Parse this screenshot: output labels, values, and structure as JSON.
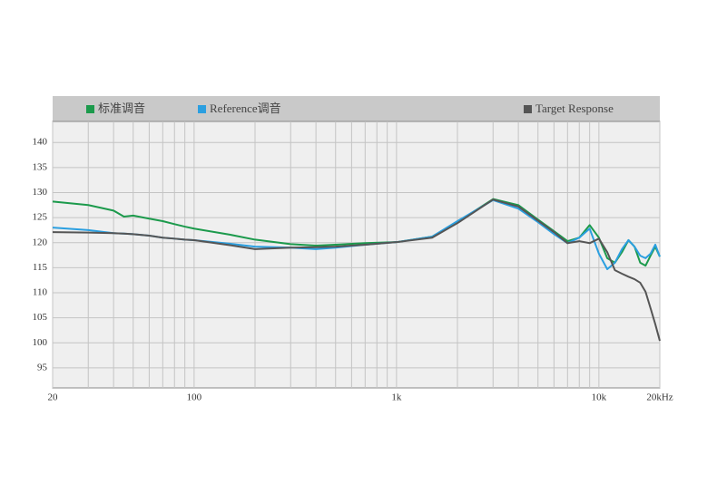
{
  "chart_data": {
    "type": "line",
    "x": [
      20,
      30,
      40,
      45,
      50,
      60,
      70,
      80,
      90,
      100,
      150,
      200,
      300,
      400,
      500,
      700,
      1000,
      1500,
      2000,
      3000,
      4000,
      5000,
      6000,
      7000,
      8000,
      9000,
      10000,
      11000,
      12000,
      13000,
      14000,
      15000,
      16000,
      17000,
      18000,
      19000,
      20000
    ],
    "series": [
      {
        "name": "标准调音",
        "color": "#1c9a4c",
        "values": [
          128.2,
          127.5,
          126.4,
          125.2,
          125.4,
          124.8,
          124.3,
          123.7,
          123.2,
          122.8,
          121.6,
          120.6,
          119.7,
          119.4,
          119.6,
          119.9,
          120.1,
          121.2,
          124.1,
          128.7,
          127.5,
          124.6,
          122.3,
          120.3,
          121,
          123.5,
          121,
          116.9,
          116,
          118.1,
          120.5,
          119.2,
          116,
          115.4,
          117.4,
          119.2,
          117.2
        ]
      },
      {
        "name": "Reference调音",
        "color": "#2b9fe0",
        "values": [
          123,
          122.5,
          121.9,
          121.8,
          121.7,
          121.4,
          121,
          120.8,
          120.6,
          120.5,
          119.8,
          119.2,
          119,
          118.7,
          119,
          119.6,
          120.1,
          121.2,
          124.3,
          128.5,
          126.8,
          124.1,
          121.7,
          119.9,
          121,
          122.8,
          117.8,
          114.7,
          116,
          118.7,
          120.5,
          119.2,
          117.4,
          116.9,
          117.8,
          119.6,
          117.2
        ]
      },
      {
        "name": "Target Response",
        "color": "#555555",
        "values": [
          122.1,
          122,
          121.9,
          121.8,
          121.7,
          121.4,
          121,
          120.8,
          120.6,
          120.5,
          119.5,
          118.7,
          119,
          119.1,
          119.2,
          119.6,
          120.1,
          121,
          123.9,
          128.6,
          127.2,
          124.4,
          122.1,
          119.9,
          120.3,
          119.9,
          120.8,
          118.1,
          114.5,
          113.8,
          113.2,
          112.7,
          112,
          110.2,
          106.9,
          103.7,
          100.4
        ]
      }
    ],
    "xlim": [
      20,
      20000
    ],
    "ylim": [
      91,
      144.2
    ],
    "xlog": true,
    "xticks": [
      20,
      100,
      {
        "value": 1000,
        "label": "1k"
      },
      {
        "value": 10000,
        "label": "10k"
      },
      {
        "value": 20000,
        "label": "20kHz"
      }
    ],
    "x_gridlines": [
      20,
      30,
      40,
      50,
      60,
      70,
      80,
      90,
      100,
      200,
      300,
      400,
      500,
      600,
      700,
      800,
      900,
      1000,
      2000,
      3000,
      4000,
      5000,
      6000,
      7000,
      8000,
      9000,
      10000,
      20000
    ],
    "yticks": [
      95,
      100,
      105,
      110,
      115,
      120,
      125,
      130,
      135,
      140
    ],
    "grid": true
  }
}
